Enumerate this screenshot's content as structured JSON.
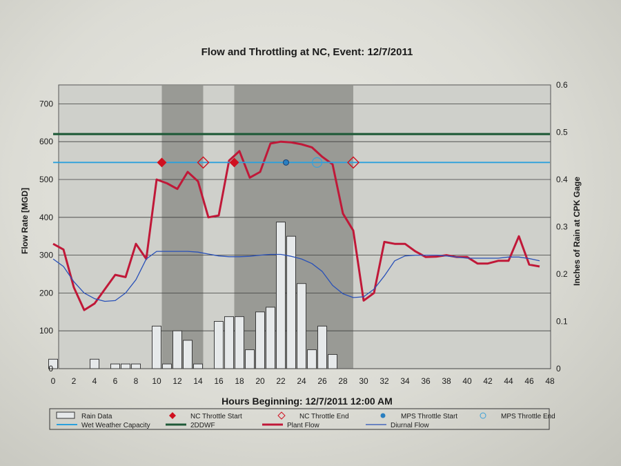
{
  "chart_data": {
    "type": "line",
    "title": "Flow and Throttling at NC, Event:  12/7/2011",
    "xlabel": "Hours Beginning: 12/7/2011 12:00 AM",
    "ylabel": "Flow Rate [MGD]",
    "y2label": "Inches of Rain at CPK Gage",
    "xlim": [
      0,
      48
    ],
    "ylim": [
      0,
      750
    ],
    "y2lim": [
      0,
      0.6
    ],
    "x_ticks": [
      "0",
      "2",
      "4",
      "6",
      "8",
      "10",
      "12",
      "14",
      "16",
      "18",
      "20",
      "22",
      "24",
      "26",
      "28",
      "30",
      "32",
      "34",
      "36",
      "38",
      "40",
      "42",
      "44",
      "46",
      "48"
    ],
    "y_ticks": [
      "0",
      "100",
      "200",
      "300",
      "400",
      "500",
      "600",
      "700"
    ],
    "y2_ticks": [
      "0",
      "0.1",
      "0.2",
      "0.3",
      "0.4",
      "0.5",
      "0.6"
    ],
    "grid": true,
    "legend_position": "bottom",
    "shaded_periods": [
      {
        "start": 10.5,
        "end": 14.5
      },
      {
        "start": 17.5,
        "end": 29.0
      }
    ],
    "rain_data": {
      "name": "Rain Data",
      "bars": [
        {
          "x": 0,
          "value": 0.02
        },
        {
          "x": 4,
          "value": 0.02
        },
        {
          "x": 6,
          "value": 0.01
        },
        {
          "x": 7,
          "value": 0.01
        },
        {
          "x": 8,
          "value": 0.01
        },
        {
          "x": 10,
          "value": 0.09
        },
        {
          "x": 11,
          "value": 0.01
        },
        {
          "x": 12,
          "value": 0.08
        },
        {
          "x": 13,
          "value": 0.06
        },
        {
          "x": 14,
          "value": 0.01
        },
        {
          "x": 16,
          "value": 0.1
        },
        {
          "x": 17,
          "value": 0.11
        },
        {
          "x": 18,
          "value": 0.11
        },
        {
          "x": 19,
          "value": 0.04
        },
        {
          "x": 20,
          "value": 0.12
        },
        {
          "x": 21,
          "value": 0.13
        },
        {
          "x": 22,
          "value": 0.31
        },
        {
          "x": 23,
          "value": 0.28
        },
        {
          "x": 24,
          "value": 0.18
        },
        {
          "x": 25,
          "value": 0.04
        },
        {
          "x": 26,
          "value": 0.09
        },
        {
          "x": 27,
          "value": 0.03
        }
      ]
    },
    "series": [
      {
        "name": "Plant Flow",
        "color": "#c01838",
        "x": [
          0,
          1,
          2,
          3,
          4,
          5,
          6,
          7,
          8,
          9,
          10,
          11,
          12,
          13,
          14,
          15,
          16,
          17,
          18,
          19,
          20,
          21,
          22,
          23,
          24,
          25,
          26,
          27,
          28,
          29,
          30,
          31,
          32,
          33,
          34,
          35,
          36,
          37,
          38,
          39,
          40,
          41,
          42,
          43,
          44,
          45,
          46,
          47
        ],
        "y": [
          330,
          315,
          215,
          155,
          172,
          210,
          248,
          242,
          330,
          290,
          500,
          490,
          475,
          520,
          495,
          400,
          405,
          550,
          575,
          505,
          520,
          595,
          600,
          598,
          593,
          585,
          560,
          540,
          410,
          365,
          180,
          200,
          335,
          330,
          330,
          310,
          295,
          296,
          300,
          295,
          295,
          278,
          278,
          285,
          285,
          350,
          275,
          270
        ]
      },
      {
        "name": "Diurnal Flow",
        "color": "#2850b8",
        "x": [
          0,
          1,
          2,
          3,
          4,
          5,
          6,
          7,
          8,
          9,
          10,
          11,
          12,
          13,
          14,
          15,
          16,
          17,
          18,
          19,
          20,
          21,
          22,
          23,
          24,
          25,
          26,
          27,
          28,
          29,
          30,
          31,
          32,
          33,
          34,
          35,
          36,
          37,
          38,
          39,
          40,
          41,
          42,
          43,
          44,
          45,
          46,
          47
        ],
        "y": [
          290,
          270,
          230,
          200,
          185,
          178,
          180,
          200,
          235,
          290,
          310,
          310,
          310,
          310,
          308,
          303,
          298,
          296,
          296,
          297,
          300,
          302,
          302,
          297,
          290,
          278,
          257,
          220,
          198,
          188,
          190,
          210,
          245,
          285,
          298,
          300,
          300,
          300,
          298,
          295,
          292,
          292,
          292,
          292,
          295,
          295,
          291,
          285
        ]
      },
      {
        "name": "Wet Weather Capacity",
        "color": "#2aa0dc",
        "x": [
          0,
          48
        ],
        "y": [
          545,
          545
        ]
      },
      {
        "name": "2DDWF",
        "color": "#1f5a38",
        "x": [
          0,
          48
        ],
        "y": [
          620,
          620
        ]
      }
    ],
    "markers": [
      {
        "name": "NC Throttle Start",
        "x": [
          10.5,
          17.5
        ],
        "y": [
          545,
          545
        ]
      },
      {
        "name": "NC Throttle End",
        "x": [
          14.5,
          29.0
        ],
        "y": [
          545,
          545
        ]
      },
      {
        "name": "MPS Throttle Start",
        "x": [
          22.5
        ],
        "y": [
          545
        ]
      },
      {
        "name": "MPS Throttle End",
        "x": [
          25.5
        ],
        "y": [
          545
        ]
      }
    ]
  }
}
